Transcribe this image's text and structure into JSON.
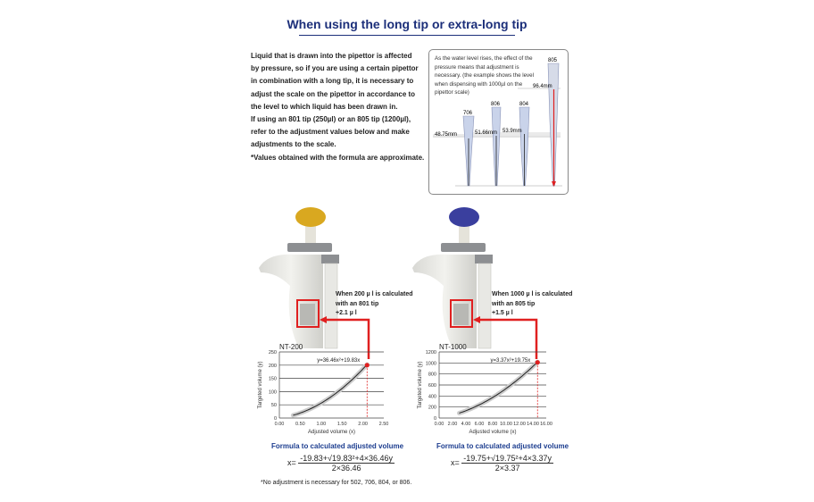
{
  "title": "When using the long tip or extra-long tip",
  "intro_lines": [
    "Liquid that is drawn into the pipettor is affected",
    "by pressure, so if you are using a certain pipettor",
    "in combination with a long tip, it is necessary to",
    "adjust the scale on the pipettor in accordance to",
    "the level to which liquid has been drawn in.",
    "If using an 801 tip (250µl) or an 805 tip (1200µl),",
    "refer to the adjustment values below and make",
    "adjustments to the scale.",
    "*Values obtained with the formula are approximate."
  ],
  "diagram": {
    "note": "As the water level rises, the effect of the pressure means that adjustment is necessary. (the example shows the level when dispensing with 1000µl on the pipettor scale)",
    "tips": [
      {
        "name": "706",
        "level": "48.75mm"
      },
      {
        "name": "806",
        "level": "51.66mm"
      },
      {
        "name": "804",
        "level": "53.9mm"
      },
      {
        "name": "805",
        "level": "96.4mm"
      }
    ]
  },
  "pipettes": [
    {
      "cap_color": "#d9a820",
      "callout": [
        "When 200 µ l is calculated",
        "with an 801 tip",
        "+2.1 µ l"
      ]
    },
    {
      "cap_color": "#3a3f9e",
      "callout": [
        "When 1000 µ l is calculated",
        "with an 805 tip",
        "+1.5 µ l"
      ]
    }
  ],
  "chart_data": [
    {
      "type": "line",
      "title": "NT-200",
      "xlabel": "Adjusted volume (x)",
      "ylabel": "Targeted volume (y)",
      "equation": "y=36.46x²+19.83x",
      "xlim": [
        0,
        2.5
      ],
      "ylim": [
        0,
        250
      ],
      "xticks": [
        "0.00",
        "0.50",
        "1.00",
        "1.50",
        "2.00",
        "2.50"
      ],
      "yticks": [
        "0",
        "50",
        "100",
        "150",
        "200",
        "250"
      ],
      "grid": "horizontal",
      "coefficients": {
        "a": 36.46,
        "b": 19.83
      },
      "x_range": [
        0.33,
        2.1
      ],
      "highlight": {
        "x": 2.1,
        "y": 200
      }
    },
    {
      "type": "line",
      "title": "NT-1000",
      "xlabel": "Adjusted volume (x)",
      "ylabel": "Targeted volume (y)",
      "equation": "y=3.37x²+19.75x",
      "xlim": [
        0,
        16
      ],
      "ylim": [
        0,
        1200
      ],
      "xticks": [
        "0.00",
        "2.00",
        "4.00",
        "6.00",
        "8.00",
        "10.00",
        "12.00",
        "14.00",
        "16.00"
      ],
      "yticks": [
        "0",
        "200",
        "400",
        "600",
        "800",
        "1000",
        "1200"
      ],
      "grid": "horizontal",
      "coefficients": {
        "a": 3.37,
        "b": 19.75
      },
      "x_range": [
        3.0,
        14.7
      ],
      "highlight": {
        "x": 14.7,
        "y": 1010
      }
    }
  ],
  "formulas": [
    {
      "title": "Formula to calculated adjusted volume",
      "lhs": "x=",
      "numerator": "-19.83+√19.83²+4×36.46y",
      "denominator": "2×36.46"
    },
    {
      "title": "Formula to calculated adjusted volume",
      "lhs": "x=",
      "numerator": "-19.75+√19.75²+4×3.37y",
      "denominator": "2×3.37"
    }
  ],
  "footnote": "*No adjustment is necessary for 502, 706, 804, or 806.",
  "colors": {
    "title": "#1c2f7a",
    "accent_red": "#e02020",
    "formula_title": "#1c3d8f"
  }
}
